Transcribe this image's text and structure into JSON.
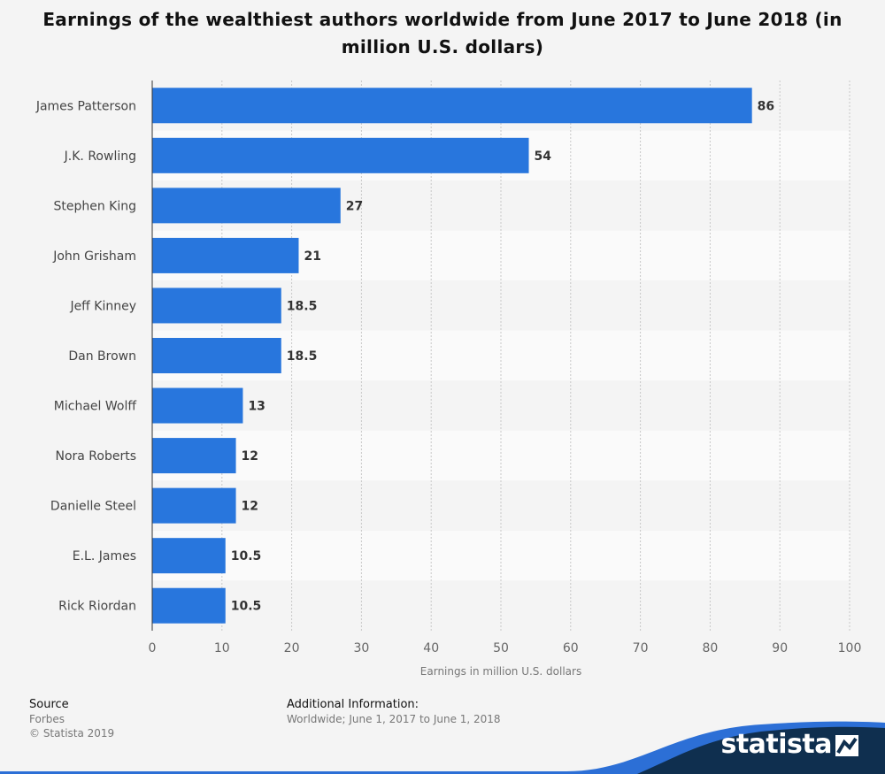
{
  "title": "Earnings of the wealthiest authors worldwide from June 2017 to June 2018 (in million U.S. dollars)",
  "chart_data": {
    "type": "bar",
    "orientation": "horizontal",
    "categories": [
      "James Patterson",
      "J.K. Rowling",
      "Stephen King",
      "John Grisham",
      "Jeff Kinney",
      "Dan Brown",
      "Michael Wolff",
      "Nora Roberts",
      "Danielle Steel",
      "E.L. James",
      "Rick Riordan"
    ],
    "values": [
      86,
      54,
      27,
      21,
      18.5,
      18.5,
      13,
      12,
      12,
      10.5,
      10.5
    ],
    "value_labels": [
      "86",
      "54",
      "27",
      "21",
      "18.5",
      "18.5",
      "13",
      "12",
      "12",
      "10.5",
      "10.5"
    ],
    "xlabel": "Earnings in million U.S. dollars",
    "ylabel": "",
    "xlim": [
      0,
      100
    ],
    "ticks": [
      0,
      10,
      20,
      30,
      40,
      50,
      60,
      70,
      80,
      90,
      100
    ],
    "tick_labels": [
      "0",
      "10",
      "20",
      "30",
      "40",
      "50",
      "60",
      "70",
      "80",
      "90",
      "100"
    ],
    "grid": true,
    "bar_color": "#2876dd"
  },
  "footer": {
    "source_label": "Source",
    "source_value": "Forbes",
    "copyright": "© Statista 2019",
    "additional_label": "Additional Information:",
    "additional_value": "Worldwide; June 1, 2017 to June 1, 2018"
  },
  "brand": {
    "name": "statista",
    "colors": {
      "dark": "#0f2f4f",
      "light": "#2c6fd6"
    }
  }
}
